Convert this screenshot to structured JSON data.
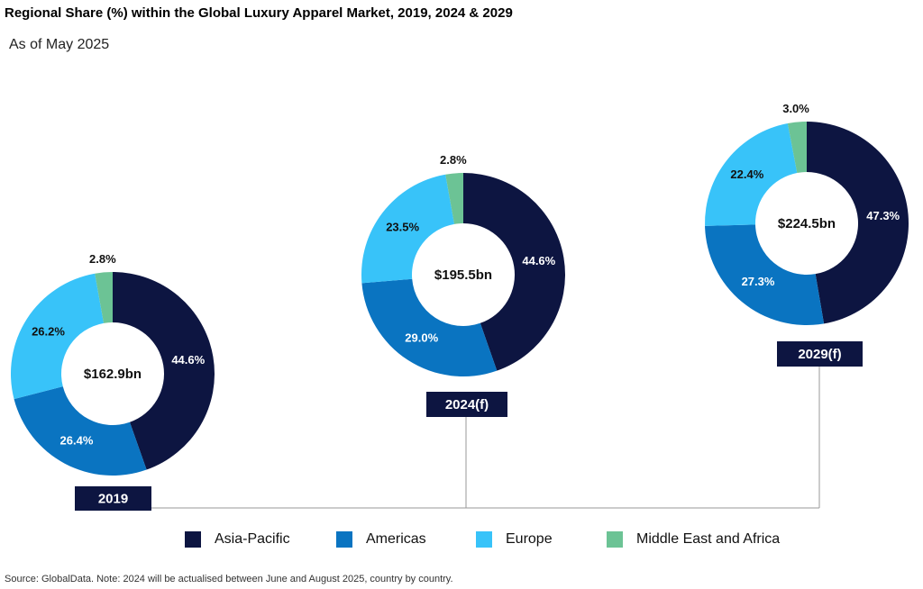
{
  "title": "Regional Share (%) within the Global Luxury Apparel Market, 2019, 2024 & 2029",
  "subtitle": "As of May 2025",
  "source": "Source: GlobalData. Note: 2024 will be actualised between June and August 2025, country by country.",
  "chart_data": [
    {
      "type": "donut",
      "title": "2019",
      "center_label": "$162.9bn",
      "categories": [
        "Asia-Pacific",
        "Americas",
        "Europe",
        "Middle East and Africa"
      ],
      "values": [
        44.6,
        26.4,
        26.2,
        2.8
      ],
      "value_labels": [
        "44.6%",
        "26.4%",
        "26.2%",
        "2.8%"
      ],
      "colors": [
        "#0d1541",
        "#0a74c1",
        "#38c3f9",
        "#6cc395"
      ]
    },
    {
      "type": "donut",
      "title": "2024(f)",
      "center_label": "$195.5bn",
      "categories": [
        "Asia-Pacific",
        "Americas",
        "Europe",
        "Middle East and Africa"
      ],
      "values": [
        44.6,
        29.0,
        23.5,
        2.8
      ],
      "value_labels": [
        "44.6%",
        "29.0%",
        "23.5%",
        "2.8%"
      ],
      "colors": [
        "#0d1541",
        "#0a74c1",
        "#38c3f9",
        "#6cc395"
      ]
    },
    {
      "type": "donut",
      "title": "2029(f)",
      "center_label": "$224.5bn",
      "categories": [
        "Asia-Pacific",
        "Americas",
        "Europe",
        "Middle East and Africa"
      ],
      "values": [
        47.3,
        27.3,
        22.4,
        3.0
      ],
      "value_labels": [
        "47.3%",
        "27.3%",
        "22.4%",
        "3.0%"
      ],
      "colors": [
        "#0d1541",
        "#0a74c1",
        "#38c3f9",
        "#6cc395"
      ]
    }
  ]
}
